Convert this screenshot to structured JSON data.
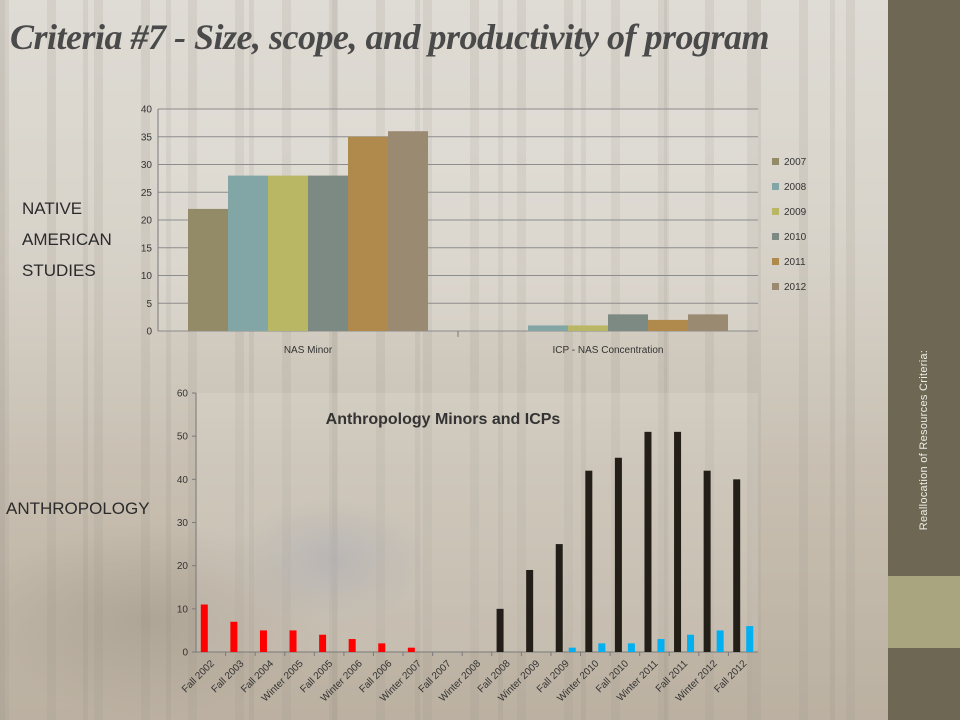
{
  "slide": {
    "title": "Criteria #7 - Size, scope, and productivity of program",
    "sidebar_text": "Reallocation of Resources Criteria:",
    "labels": {
      "nas_line1": "NATIVE",
      "nas_line2": "AMERICAN",
      "nas_line3": "STUDIES",
      "anthropology": "ANTHROPOLOGY"
    }
  },
  "colors": {
    "sidebar": "#6e6753",
    "sidebar_band": "#a9a57f",
    "series": [
      "#938b67",
      "#82a5a6",
      "#b9b763",
      "#7c8a83",
      "#b08a4d",
      "#9b8a72"
    ],
    "minors": "#ff0000",
    "icp": "#00b0f0",
    "minors_late": "#231f18"
  },
  "chart_data": [
    {
      "type": "bar",
      "title": "",
      "categories": [
        "NAS Minor",
        "ICP - NAS Concentration"
      ],
      "series": [
        {
          "name": "2007",
          "values": [
            22,
            0
          ]
        },
        {
          "name": "2008",
          "values": [
            28,
            1
          ]
        },
        {
          "name": "2009",
          "values": [
            28,
            1
          ]
        },
        {
          "name": "2010",
          "values": [
            28,
            3
          ]
        },
        {
          "name": "2011",
          "values": [
            35,
            2
          ]
        },
        {
          "name": "2012",
          "values": [
            36,
            3
          ]
        }
      ],
      "ylim": [
        0,
        40
      ],
      "yticks": [
        0,
        5,
        10,
        15,
        20,
        25,
        30,
        35,
        40
      ],
      "grid": true,
      "legend": "right"
    },
    {
      "type": "bar",
      "title": "Anthropology Minors and ICPs",
      "categories": [
        "Fall 2002",
        "Fall 2003",
        "Fall 2004",
        "Winter 2005",
        "Fall 2005",
        "Winter 2006",
        "Fall 2006",
        "Winter 2007",
        "Fall 2007",
        "Winter 2008",
        "Fall 2008",
        "Winter 2009",
        "Fall 2009",
        "Winter 2010",
        "Fall 2010",
        "Winter 2011",
        "Fall 2011",
        "Winter 2012",
        "Fall 2012"
      ],
      "series": [
        {
          "values": [
            11,
            7,
            5,
            5,
            4,
            3,
            2,
            1,
            0,
            0,
            10,
            19,
            25,
            42,
            45,
            51,
            51,
            42,
            40
          ]
        },
        {
          "values": [
            0,
            0,
            0,
            0,
            0,
            0,
            0,
            0,
            0,
            0,
            0,
            0,
            1,
            2,
            2,
            3,
            4,
            5,
            6
          ]
        }
      ],
      "ylim": [
        0,
        60
      ],
      "yticks": [
        0,
        10,
        20,
        30,
        40,
        50,
        60
      ],
      "grid": false,
      "legend": "none"
    }
  ]
}
